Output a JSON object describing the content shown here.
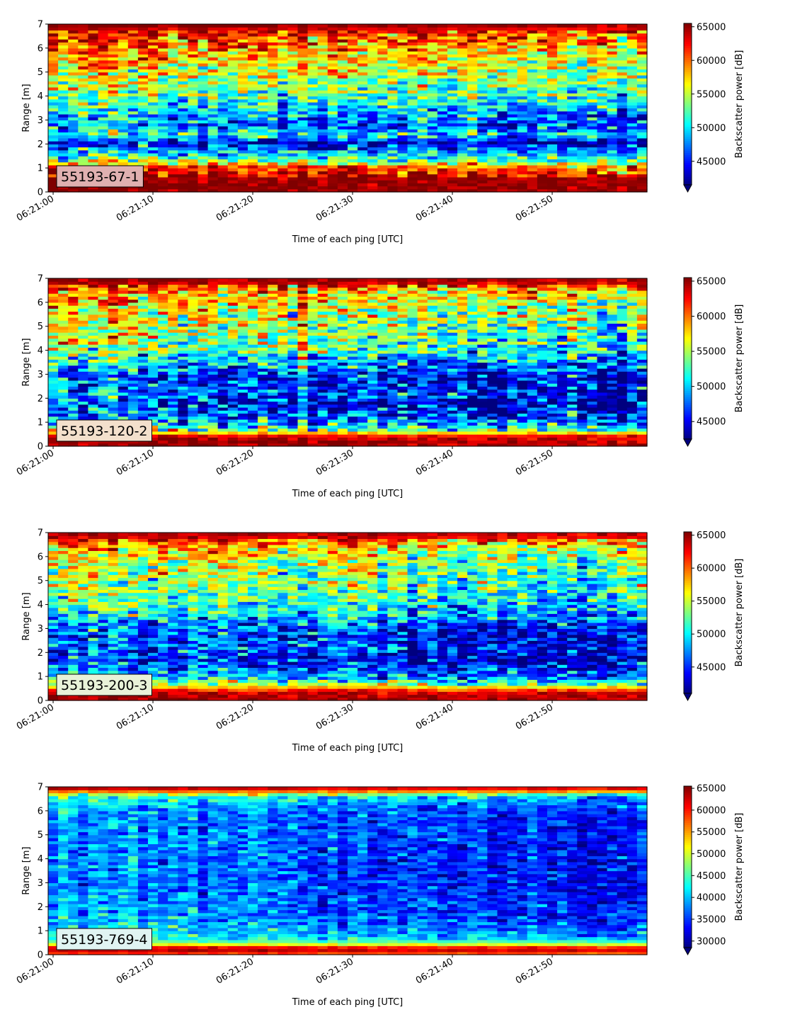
{
  "figure": {
    "colormap": "jet",
    "colors": {
      "jet": [
        "#00007f",
        "#0000ff",
        "#007fff",
        "#00ffff",
        "#7fff7f",
        "#ffff00",
        "#ff7f00",
        "#ff0000",
        "#7f0000"
      ],
      "label_box_edge": "#000000"
    }
  },
  "chart_data": [
    {
      "type": "heatmap",
      "label": "55193-67-1",
      "label_box_color": "#e0b0b0",
      "xlabel": "Time of each ping [UTC]",
      "ylabel": "Range [m]",
      "colorbar_label": "Backscatter power [dB]",
      "colorbar_extend": "min",
      "x_ticks": [
        "06:21:00",
        "06:21:10",
        "06:21:20",
        "06:21:30",
        "06:21:40",
        "06:21:50"
      ],
      "x_tick_seconds": [
        0,
        10,
        20,
        30,
        40,
        50
      ],
      "x_range_seconds": [
        -0.5,
        59.5
      ],
      "y_ticks": [
        0,
        1,
        2,
        3,
        4,
        5,
        6,
        7
      ],
      "ylim": [
        0,
        7
      ],
      "clim": [
        41500,
        65500
      ],
      "colorbar_ticks": [
        45000,
        50000,
        55000,
        60000,
        65000
      ],
      "pings": 60,
      "range_bins": 56,
      "profile": [
        {
          "r": 0.0,
          "v": 65000
        },
        {
          "r": 0.15,
          "v": 66000
        },
        {
          "r": 0.5,
          "v": 65500
        },
        {
          "r": 0.8,
          "v": 64500
        },
        {
          "r": 1.05,
          "v": 62000
        },
        {
          "r": 1.3,
          "v": 55000
        },
        {
          "r": 1.7,
          "v": 50000
        },
        {
          "r": 2.05,
          "v": 45000
        },
        {
          "r": 2.4,
          "v": 52000
        },
        {
          "r": 2.8,
          "v": 48000
        },
        {
          "r": 3.3,
          "v": 50000
        },
        {
          "r": 4.0,
          "v": 54000
        },
        {
          "r": 4.8,
          "v": 56000
        },
        {
          "r": 5.6,
          "v": 58500
        },
        {
          "r": 6.2,
          "v": 61000
        },
        {
          "r": 6.8,
          "v": 64000
        },
        {
          "r": 7.0,
          "v": 66000
        }
      ],
      "time_trend": -2500,
      "noise": 4200
    },
    {
      "type": "heatmap",
      "label": "55193-120-2",
      "label_box_color": "#f3e0cc",
      "xlabel": "Time of each ping [UTC]",
      "ylabel": "Range [m]",
      "colorbar_label": "Backscatter power [dB]",
      "colorbar_extend": "min",
      "x_ticks": [
        "06:21:00",
        "06:21:10",
        "06:21:20",
        "06:21:30",
        "06:21:40",
        "06:21:50"
      ],
      "x_tick_seconds": [
        0,
        10,
        20,
        30,
        40,
        50
      ],
      "x_range_seconds": [
        -0.5,
        59.5
      ],
      "y_ticks": [
        0,
        1,
        2,
        3,
        4,
        5,
        6,
        7
      ],
      "ylim": [
        0,
        7
      ],
      "clim": [
        42500,
        65500
      ],
      "colorbar_ticks": [
        45000,
        50000,
        55000,
        60000,
        65000
      ],
      "pings": 60,
      "range_bins": 56,
      "profile": [
        {
          "r": 0.0,
          "v": 65500
        },
        {
          "r": 0.4,
          "v": 65000
        },
        {
          "r": 0.6,
          "v": 57000
        },
        {
          "r": 0.9,
          "v": 52000
        },
        {
          "r": 1.3,
          "v": 49000
        },
        {
          "r": 1.8,
          "v": 47000
        },
        {
          "r": 2.3,
          "v": 49000
        },
        {
          "r": 2.8,
          "v": 47500
        },
        {
          "r": 3.4,
          "v": 51000
        },
        {
          "r": 4.2,
          "v": 55000
        },
        {
          "r": 5.0,
          "v": 56500
        },
        {
          "r": 5.8,
          "v": 58000
        },
        {
          "r": 6.4,
          "v": 60500
        },
        {
          "r": 6.8,
          "v": 64500
        },
        {
          "r": 7.0,
          "v": 66000
        }
      ],
      "time_trend": -3500,
      "noise": 4500
    },
    {
      "type": "heatmap",
      "label": "55193-200-3",
      "label_box_color": "#e8f2d8",
      "xlabel": "Time of each ping [UTC]",
      "ylabel": "Range [m]",
      "colorbar_label": "Backscatter power [dB]",
      "colorbar_extend": "min",
      "x_ticks": [
        "06:21:00",
        "06:21:10",
        "06:21:20",
        "06:21:30",
        "06:21:40",
        "06:21:50"
      ],
      "x_tick_seconds": [
        0,
        10,
        20,
        30,
        40,
        50
      ],
      "x_range_seconds": [
        -0.5,
        59.5
      ],
      "y_ticks": [
        0,
        1,
        2,
        3,
        4,
        5,
        6,
        7
      ],
      "ylim": [
        0,
        7
      ],
      "clim": [
        41000,
        65500
      ],
      "colorbar_ticks": [
        45000,
        50000,
        55000,
        60000,
        65000
      ],
      "pings": 60,
      "range_bins": 56,
      "profile": [
        {
          "r": 0.0,
          "v": 65000
        },
        {
          "r": 0.35,
          "v": 64500
        },
        {
          "r": 0.6,
          "v": 57000
        },
        {
          "r": 0.9,
          "v": 51000
        },
        {
          "r": 1.3,
          "v": 47500
        },
        {
          "r": 1.8,
          "v": 45500
        },
        {
          "r": 2.3,
          "v": 47500
        },
        {
          "r": 2.9,
          "v": 47000
        },
        {
          "r": 3.5,
          "v": 50500
        },
        {
          "r": 4.2,
          "v": 53500
        },
        {
          "r": 5.0,
          "v": 54500
        },
        {
          "r": 5.8,
          "v": 56000
        },
        {
          "r": 6.4,
          "v": 59000
        },
        {
          "r": 6.8,
          "v": 63500
        },
        {
          "r": 7.0,
          "v": 65500
        }
      ],
      "time_trend": -3500,
      "noise": 4300
    },
    {
      "type": "heatmap",
      "label": "55193-769-4",
      "label_box_color": "#e0f4f2",
      "xlabel": "Time of each ping [UTC]",
      "ylabel": "Range [m]",
      "colorbar_label": "Backscatter power [dB]",
      "colorbar_extend": "min",
      "x_ticks": [
        "06:21:00",
        "06:21:10",
        "06:21:20",
        "06:21:30",
        "06:21:40",
        "06:21:50"
      ],
      "x_tick_seconds": [
        0,
        10,
        20,
        30,
        40,
        50
      ],
      "x_range_seconds": [
        -0.5,
        59.5
      ],
      "y_ticks": [
        0,
        1,
        2,
        3,
        4,
        5,
        6,
        7
      ],
      "ylim": [
        0,
        7
      ],
      "clim": [
        28500,
        65500
      ],
      "colorbar_ticks": [
        30000,
        35000,
        40000,
        45000,
        50000,
        55000,
        60000,
        65000
      ],
      "pings": 60,
      "range_bins": 56,
      "profile": [
        {
          "r": 0.0,
          "v": 56000
        },
        {
          "r": 0.15,
          "v": 64000
        },
        {
          "r": 0.3,
          "v": 62000
        },
        {
          "r": 0.5,
          "v": 47000
        },
        {
          "r": 0.8,
          "v": 43000
        },
        {
          "r": 1.3,
          "v": 40000
        },
        {
          "r": 2.0,
          "v": 38500
        },
        {
          "r": 3.0,
          "v": 37500
        },
        {
          "r": 4.0,
          "v": 38000
        },
        {
          "r": 5.0,
          "v": 38500
        },
        {
          "r": 6.0,
          "v": 39000
        },
        {
          "r": 6.6,
          "v": 44000
        },
        {
          "r": 6.9,
          "v": 62000
        },
        {
          "r": 7.0,
          "v": 64000
        }
      ],
      "time_trend": -4500,
      "noise": 3800
    }
  ]
}
